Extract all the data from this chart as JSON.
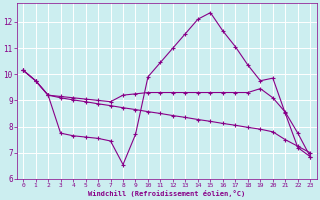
{
  "bg_color": "#cceef0",
  "grid_color": "#ffffff",
  "line_color": "#880088",
  "marker": "+",
  "xlabel": "Windchill (Refroidissement éolien,°C)",
  "xlabel_color": "#880088",
  "tick_color": "#880088",
  "xlim": [
    -0.5,
    23.5
  ],
  "ylim": [
    6.0,
    12.7
  ],
  "yticks": [
    6,
    7,
    8,
    9,
    10,
    11,
    12
  ],
  "xticks": [
    0,
    1,
    2,
    3,
    4,
    5,
    6,
    7,
    8,
    9,
    10,
    11,
    12,
    13,
    14,
    15,
    16,
    17,
    18,
    19,
    20,
    21,
    22,
    23
  ],
  "series1_x": [
    0,
    1,
    2,
    3,
    4,
    5,
    6,
    7,
    8,
    9,
    10,
    11,
    12,
    13,
    14,
    15,
    16,
    17,
    18,
    19,
    20,
    21,
    22,
    23
  ],
  "series1_y": [
    10.15,
    9.75,
    9.2,
    9.15,
    9.1,
    9.05,
    9.0,
    8.95,
    9.2,
    9.25,
    9.3,
    9.3,
    9.3,
    9.3,
    9.3,
    9.3,
    9.3,
    9.3,
    9.3,
    9.45,
    9.1,
    8.55,
    7.75,
    6.85
  ],
  "series2_x": [
    0,
    1,
    2,
    3,
    4,
    5,
    6,
    7,
    8,
    9,
    10,
    11,
    12,
    13,
    14,
    15,
    16,
    17,
    18,
    19,
    20,
    21,
    22,
    23
  ],
  "series2_y": [
    10.15,
    9.75,
    9.2,
    9.1,
    9.02,
    8.95,
    8.87,
    8.8,
    8.72,
    8.65,
    8.57,
    8.5,
    8.42,
    8.35,
    8.27,
    8.2,
    8.12,
    8.05,
    7.97,
    7.9,
    7.8,
    7.5,
    7.25,
    7.0
  ],
  "series3_x": [
    0,
    1,
    2,
    3,
    4,
    5,
    6,
    7,
    8,
    9,
    10,
    11,
    12,
    13,
    14,
    15,
    16,
    17,
    18,
    19,
    20,
    21,
    22,
    23
  ],
  "series3_y": [
    10.15,
    9.75,
    9.2,
    7.75,
    7.65,
    7.6,
    7.55,
    7.45,
    6.55,
    7.7,
    9.9,
    10.45,
    11.0,
    11.55,
    12.1,
    12.35,
    11.65,
    11.05,
    10.35,
    9.75,
    9.85,
    8.5,
    7.2,
    6.85
  ]
}
